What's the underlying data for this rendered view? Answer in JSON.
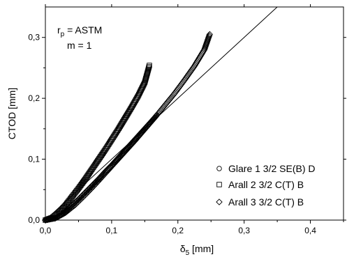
{
  "chart_data": {
    "type": "scatter",
    "xlabel": "δ",
    "xlabel_sub": "5",
    "xlabel_unit": " [mm]",
    "ylabel": "CTOD [mm]",
    "xlim": [
      0,
      0.45
    ],
    "ylim": [
      0,
      0.35
    ],
    "x_ticks": [
      {
        "value": 0.0,
        "label": "0,0"
      },
      {
        "value": 0.1,
        "label": "0,1"
      },
      {
        "value": 0.2,
        "label": "0,2"
      },
      {
        "value": 0.3,
        "label": "0,3"
      },
      {
        "value": 0.4,
        "label": "0,4"
      }
    ],
    "y_ticks": [
      {
        "value": 0.0,
        "label": "0,0"
      },
      {
        "value": 0.1,
        "label": "0,1"
      },
      {
        "value": 0.2,
        "label": "0,2"
      },
      {
        "value": 0.3,
        "label": "0,3"
      }
    ],
    "grid": false,
    "legend_position": "bottom-right",
    "annotation": {
      "line1_main": "r",
      "line1_sub": "p",
      "line1_rest": " = ASTM",
      "line2": "m = 1"
    },
    "reference_line": {
      "x": [
        0,
        0.35
      ],
      "y": [
        0,
        0.35
      ]
    },
    "series": [
      {
        "name": "Glare 1 3/2 SE(B) D",
        "marker": "circle",
        "x": [
          0.0,
          0.01,
          0.02,
          0.03,
          0.04,
          0.05,
          0.06,
          0.07,
          0.08,
          0.09,
          0.1,
          0.11,
          0.12,
          0.13,
          0.14,
          0.15,
          0.16,
          0.168
        ],
        "y": [
          0.0,
          0.002,
          0.006,
          0.014,
          0.024,
          0.034,
          0.045,
          0.056,
          0.067,
          0.079,
          0.09,
          0.102,
          0.114,
          0.126,
          0.138,
          0.15,
          0.162,
          0.172
        ]
      },
      {
        "name": "Arall 2 3/2 C(T) B",
        "marker": "square",
        "x": [
          0.0,
          0.01,
          0.02,
          0.03,
          0.04,
          0.05,
          0.06,
          0.07,
          0.08,
          0.09,
          0.1,
          0.11,
          0.12,
          0.13,
          0.14,
          0.15,
          0.157
        ],
        "y": [
          0.0,
          0.004,
          0.012,
          0.024,
          0.038,
          0.052,
          0.067,
          0.083,
          0.099,
          0.115,
          0.132,
          0.149,
          0.167,
          0.185,
          0.204,
          0.226,
          0.254
        ]
      },
      {
        "name": "Arall 3 3/2 C(T) B",
        "marker": "diamond",
        "x": [
          0.0,
          0.015,
          0.03,
          0.045,
          0.06,
          0.075,
          0.09,
          0.105,
          0.12,
          0.135,
          0.15,
          0.165,
          0.18,
          0.195,
          0.21,
          0.225,
          0.24,
          0.248
        ],
        "y": [
          0.0,
          0.003,
          0.012,
          0.025,
          0.041,
          0.058,
          0.076,
          0.094,
          0.112,
          0.13,
          0.149,
          0.168,
          0.188,
          0.208,
          0.23,
          0.253,
          0.28,
          0.305
        ]
      }
    ]
  }
}
